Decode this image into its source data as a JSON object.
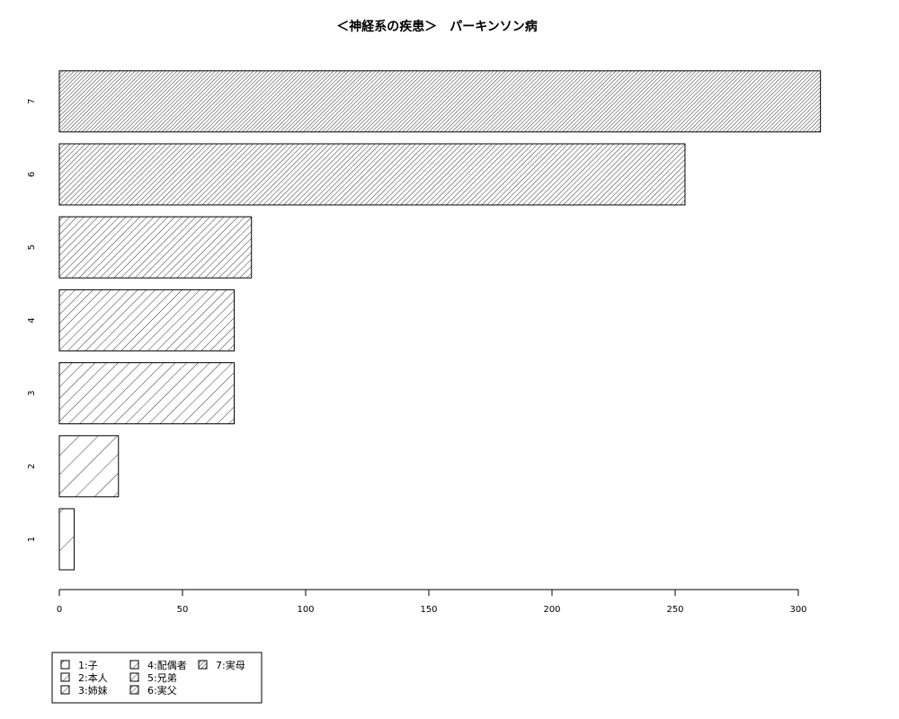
{
  "chart_data": {
    "type": "bar",
    "orientation": "horizontal",
    "title": "＜神経系の疾患＞　パーキンソン病",
    "categories": [
      "1",
      "2",
      "3",
      "4",
      "5",
      "6",
      "7"
    ],
    "values": [
      6,
      24,
      71,
      71,
      78,
      254,
      309
    ],
    "xlim": [
      0,
      300
    ],
    "x_ticks": [
      0,
      50,
      100,
      150,
      200,
      250,
      300
    ],
    "grid": false,
    "fill": "diagonal hatching, density increasing with category",
    "legend": {
      "position": "bottom-left",
      "entries": [
        "1:子",
        "2:本人",
        "3:姉妹",
        "4:配偶者",
        "5:兄弟",
        "6:実父",
        "7:実母"
      ]
    }
  }
}
